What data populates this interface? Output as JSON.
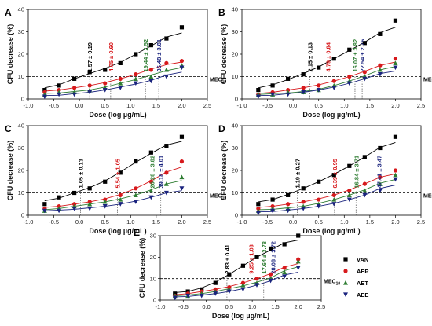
{
  "figure": {
    "x_axis_title": "Dose (log µg/mL)",
    "y_axis_title": "CFU decrease (%)",
    "mec_label_main": "MEC",
    "mec_label_sub": "10",
    "legend": [
      {
        "label": "VAN",
        "color": "#000000",
        "marker": "square"
      },
      {
        "label": "AEP",
        "color": "#d7191c",
        "marker": "circle"
      },
      {
        "label": "AET",
        "color": "#2e7d32",
        "marker": "triangle-up"
      },
      {
        "label": "AEE",
        "color": "#1a237e",
        "marker": "triangle-down"
      }
    ],
    "colors": {
      "VAN": "#000000",
      "AEP": "#d7191c",
      "AET": "#2e7d32",
      "AEE": "#1a237e",
      "reference": "#000000"
    }
  },
  "chart_data": [
    {
      "type": "scatter",
      "panel": "A",
      "xlim": [
        -1.0,
        2.5
      ],
      "ylim": [
        0,
        40
      ],
      "x_ticks": [
        "-1.0",
        "-0.5",
        "0.0",
        "0.5",
        "1.0",
        "1.5",
        "2.0",
        "2.5"
      ],
      "y_ticks": [
        "0",
        "10",
        "20",
        "30",
        "40"
      ],
      "mec_y": 10,
      "x": [
        -0.68,
        -0.4,
        -0.1,
        0.2,
        0.5,
        0.8,
        1.1,
        1.4,
        1.7,
        2.0
      ],
      "series": [
        {
          "name": "VAN",
          "values": [
            4,
            6,
            9,
            12,
            13,
            16,
            20,
            24,
            27,
            32
          ]
        },
        {
          "name": "AEP",
          "values": [
            3,
            4,
            5,
            6,
            7,
            9,
            11,
            13,
            16,
            17
          ]
        },
        {
          "name": "AET",
          "values": [
            2,
            3,
            3,
            4,
            5,
            7,
            9,
            10,
            13,
            15
          ]
        },
        {
          "name": "AEE",
          "values": [
            1,
            2,
            2,
            3,
            4,
            5,
            7,
            8,
            10,
            14
          ]
        }
      ],
      "annotations": [
        {
          "text": "1.57 ± 0.19",
          "series": "VAN",
          "x": 0.2
        },
        {
          "text": "4.05 ± 0.60",
          "series": "AEP",
          "x": 0.61
        },
        {
          "text": "19.44 ± 2.52",
          "series": "AET",
          "x": 1.29
        },
        {
          "text": "35.48 ± 3.81",
          "series": "AEE",
          "x": 1.55
        }
      ]
    },
    {
      "type": "scatter",
      "panel": "B",
      "xlim": [
        -1.0,
        2.5
      ],
      "ylim": [
        0,
        40
      ],
      "x_ticks": [
        "-1.0",
        "-0.5",
        "0.0",
        "0.5",
        "1.0",
        "1.5",
        "2.0",
        "2.5"
      ],
      "y_ticks": [
        "0",
        "10",
        "20",
        "30",
        "40"
      ],
      "mec_y": 10,
      "x": [
        -0.68,
        -0.4,
        -0.1,
        0.2,
        0.5,
        0.8,
        1.1,
        1.4,
        1.7,
        2.0
      ],
      "series": [
        {
          "name": "VAN",
          "values": [
            4,
            6,
            9,
            11,
            14,
            18,
            22,
            25,
            29,
            35
          ]
        },
        {
          "name": "AEP",
          "values": [
            2,
            3,
            4,
            5,
            6,
            8,
            10,
            12,
            15,
            18
          ]
        },
        {
          "name": "AET",
          "values": [
            2,
            2,
            3,
            3,
            4,
            6,
            8,
            10,
            13,
            16
          ]
        },
        {
          "name": "AEE",
          "values": [
            1,
            2,
            2,
            3,
            4,
            5,
            7,
            9,
            11,
            14
          ]
        }
      ],
      "annotations": [
        {
          "text": "2.15 ± 0.13",
          "series": "VAN",
          "x": 0.33
        },
        {
          "text": "4.79 ± 0.84",
          "series": "AEP",
          "x": 0.68
        },
        {
          "text": "16.07 ± 3.82",
          "series": "AET",
          "x": 1.21
        },
        {
          "text": "22.54 ± 2.76",
          "series": "AEE",
          "x": 1.35
        }
      ]
    },
    {
      "type": "scatter",
      "panel": "C",
      "xlim": [
        -1.0,
        2.5
      ],
      "ylim": [
        0,
        40
      ],
      "x_ticks": [
        "-1.0",
        "-0.5",
        "0.0",
        "0.5",
        "1.0",
        "1.5",
        "2.0",
        "2.5"
      ],
      "y_ticks": [
        "0",
        "10",
        "20",
        "30",
        "40"
      ],
      "mec_y": 10,
      "x": [
        -0.68,
        -0.4,
        -0.1,
        0.2,
        0.5,
        0.8,
        1.1,
        1.4,
        1.7,
        2.0
      ],
      "series": [
        {
          "name": "VAN",
          "values": [
            5,
            8,
            10,
            12,
            15,
            19,
            24,
            28,
            31,
            35
          ]
        },
        {
          "name": "AEP",
          "values": [
            3,
            4,
            5,
            6,
            7,
            9,
            12,
            15,
            19,
            24
          ]
        },
        {
          "name": "AET",
          "values": [
            2,
            3,
            4,
            5,
            6,
            7,
            9,
            11,
            14,
            17
          ]
        },
        {
          "name": "AEE",
          "values": [
            2,
            2,
            3,
            3,
            4,
            5,
            6,
            8,
            10,
            12
          ]
        }
      ],
      "annotations": [
        {
          "text": "1.05 ± 0.13",
          "series": "VAN",
          "x": 0.02
        },
        {
          "text": "5.54 ± 1.05",
          "series": "AEP",
          "x": 0.74
        },
        {
          "text": "26.28 ± 3.82",
          "series": "AET",
          "x": 1.42
        },
        {
          "text": "39.18 ± 4.01",
          "series": "AEE",
          "x": 1.59
        }
      ]
    },
    {
      "type": "scatter",
      "panel": "D",
      "xlim": [
        -1.0,
        2.5
      ],
      "ylim": [
        0,
        40
      ],
      "x_ticks": [
        "-1.0",
        "-0.5",
        "0.0",
        "0.5",
        "1.0",
        "1.5",
        "2.0",
        "2.5"
      ],
      "y_ticks": [
        "0",
        "10",
        "20",
        "30",
        "40"
      ],
      "mec_y": 10,
      "x": [
        -0.68,
        -0.4,
        -0.1,
        0.2,
        0.5,
        0.8,
        1.1,
        1.4,
        1.7,
        2.0
      ],
      "series": [
        {
          "name": "VAN",
          "values": [
            5,
            7,
            9,
            12,
            15,
            18,
            22,
            26,
            30,
            35
          ]
        },
        {
          "name": "AEP",
          "values": [
            3,
            4,
            5,
            6,
            7,
            9,
            11,
            14,
            17,
            20
          ]
        },
        {
          "name": "AET",
          "values": [
            2,
            3,
            3,
            4,
            5,
            7,
            9,
            11,
            14,
            18
          ]
        },
        {
          "name": "AEE",
          "values": [
            1,
            2,
            2,
            3,
            4,
            5,
            7,
            9,
            11,
            16
          ]
        }
      ],
      "annotations": [
        {
          "text": "1.19 ± 0.27",
          "series": "VAN",
          "x": 0.08
        },
        {
          "text": "6.39 ± 0.95",
          "series": "AEP",
          "x": 0.81
        },
        {
          "text": "16.84 ± 3.71",
          "series": "AET",
          "x": 1.23
        },
        {
          "text": "47.41 ± 3.47",
          "series": "AEE",
          "x": 1.68
        }
      ]
    },
    {
      "type": "scatter",
      "panel": "E",
      "xlim": [
        -1.0,
        2.5
      ],
      "ylim": [
        0,
        30
      ],
      "x_ticks": [
        "-1.0",
        "-0.5",
        "0.0",
        "0.5",
        "1.0",
        "1.5",
        "2.0",
        "2.5"
      ],
      "y_ticks": [
        "0",
        "10",
        "20",
        "30"
      ],
      "mec_y": 10,
      "x": [
        -0.68,
        -0.4,
        -0.1,
        0.2,
        0.5,
        0.8,
        1.1,
        1.4,
        1.7,
        2.0
      ],
      "series": [
        {
          "name": "VAN",
          "values": [
            3,
            4,
            5,
            8,
            12,
            16,
            20,
            24,
            26,
            30
          ]
        },
        {
          "name": "AEP",
          "values": [
            2,
            3,
            4,
            5,
            6,
            8,
            10,
            12,
            15,
            19
          ]
        },
        {
          "name": "AET",
          "values": [
            2,
            2,
            3,
            4,
            5,
            7,
            8,
            10,
            13,
            18
          ]
        },
        {
          "name": "AEE",
          "values": [
            1,
            2,
            2,
            3,
            4,
            5,
            7,
            9,
            11,
            15
          ]
        }
      ],
      "annotations": [
        {
          "text": "2.83 ± 0.41",
          "series": "VAN",
          "x": 0.45
        },
        {
          "text": "9.25 ± 1.03",
          "series": "AEP",
          "x": 0.97
        },
        {
          "text": "17.64 ± 3.78",
          "series": "AET",
          "x": 1.25
        },
        {
          "text": "28.08 ± 3.72",
          "series": "AEE",
          "x": 1.45
        }
      ]
    }
  ]
}
